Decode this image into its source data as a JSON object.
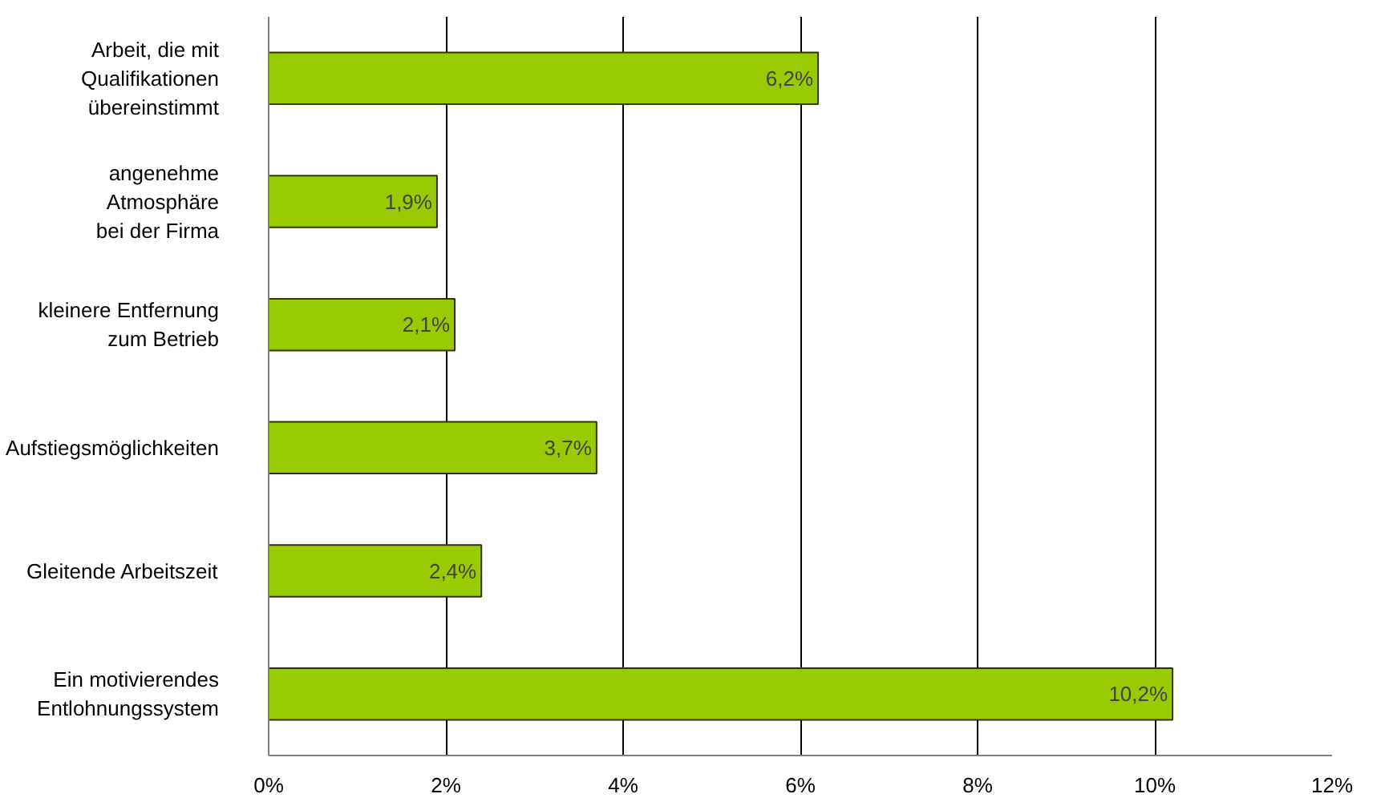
{
  "chart_data": {
    "type": "bar",
    "orientation": "horizontal",
    "categories": [
      "Arbeit, die mit\nQualifikationen\nübereinstimmt",
      "angenehme\nAtmosphäre\nbei der Firma",
      "kleinere Entfernung\nzum Betrieb",
      "Aufstiegsmöglichkeiten",
      "Gleitende Arbeitszeit",
      "Ein motivierendes\nEntlohnungssystem"
    ],
    "values": [
      6.2,
      1.9,
      2.1,
      3.7,
      2.4,
      10.2
    ],
    "value_labels": [
      "6,2%",
      "1,9%",
      "2,1%",
      "3,7%",
      "2,4%",
      "10,2%"
    ],
    "color": "#99cc00",
    "xlim": [
      0,
      12
    ],
    "xticks": [
      {
        "value": 0,
        "label": "0%"
      },
      {
        "value": 2,
        "label": "2%"
      },
      {
        "value": 4,
        "label": "4%"
      },
      {
        "value": 6,
        "label": "6%"
      },
      {
        "value": 8,
        "label": "8%"
      },
      {
        "value": 10,
        "label": "10%"
      },
      {
        "value": 12,
        "label": "12%"
      }
    ],
    "grid": "x"
  }
}
